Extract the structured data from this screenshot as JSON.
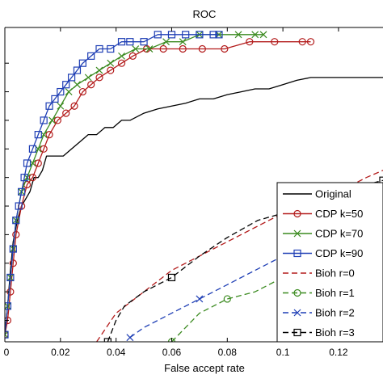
{
  "chart_data": {
    "type": "line",
    "title": "ROC",
    "xlabel": "False accept rate",
    "ylabel": "",
    "xlim": [
      0,
      0.136
    ],
    "ylim": [
      0.785,
      1.005
    ],
    "xticks": [
      0,
      0.02,
      0.04,
      0.06,
      0.08,
      0.1,
      0.12
    ],
    "xtick_labels": [
      "0",
      "0.02",
      "0.04",
      "0.06",
      "0.08",
      "0.1",
      "0.12"
    ],
    "yticks": [
      0.8,
      0.82,
      0.84,
      0.86,
      0.88,
      0.9,
      0.92,
      0.94,
      0.96,
      0.98
    ],
    "grid": false,
    "legend_position": "bottom-right",
    "series": [
      {
        "name": "Original",
        "color": "#000000",
        "dash": "solid",
        "marker": "none",
        "x": [
          0,
          0.001,
          0.002,
          0.003,
          0.0045,
          0.006,
          0.0075,
          0.009,
          0.0105,
          0.012,
          0.0135,
          0.015,
          0.018,
          0.021,
          0.024,
          0.027,
          0.03,
          0.033,
          0.036,
          0.039,
          0.042,
          0.045,
          0.05,
          0.055,
          0.06,
          0.065,
          0.07,
          0.075,
          0.08,
          0.085,
          0.09,
          0.095,
          0.1,
          0.105,
          0.11,
          0.115,
          0.12,
          0.125,
          0.13,
          0.136
        ],
        "y": [
          0.79,
          0.81,
          0.835,
          0.855,
          0.87,
          0.88,
          0.885,
          0.89,
          0.9,
          0.9,
          0.905,
          0.915,
          0.915,
          0.915,
          0.92,
          0.925,
          0.93,
          0.93,
          0.935,
          0.935,
          0.94,
          0.94,
          0.945,
          0.948,
          0.95,
          0.952,
          0.955,
          0.955,
          0.958,
          0.96,
          0.962,
          0.962,
          0.965,
          0.968,
          0.97,
          0.97,
          0.97,
          0.97,
          0.97,
          0.97
        ]
      },
      {
        "name": "CDP k=50",
        "color": "#b31b1b",
        "dash": "solid",
        "marker": "circle",
        "x": [
          0,
          0.001,
          0.002,
          0.003,
          0.004,
          0.006,
          0.008,
          0.01,
          0.012,
          0.014,
          0.016,
          0.019,
          0.022,
          0.025,
          0.028,
          0.031,
          0.034,
          0.038,
          0.042,
          0.046,
          0.051,
          0.057,
          0.064,
          0.071,
          0.079,
          0.088,
          0.097,
          0.107,
          0.11
        ],
        "y": [
          0.79,
          0.8,
          0.82,
          0.84,
          0.86,
          0.88,
          0.895,
          0.9,
          0.91,
          0.92,
          0.93,
          0.94,
          0.945,
          0.95,
          0.96,
          0.965,
          0.97,
          0.975,
          0.98,
          0.985,
          0.99,
          0.99,
          0.99,
          0.99,
          0.99,
          0.995,
          0.995,
          0.995,
          0.995
        ]
      },
      {
        "name": "CDP k=70",
        "color": "#3a8a1f",
        "dash": "solid",
        "marker": "x",
        "x": [
          0,
          0.001,
          0.002,
          0.003,
          0.004,
          0.006,
          0.008,
          0.01,
          0.012,
          0.014,
          0.017,
          0.02,
          0.023,
          0.026,
          0.03,
          0.034,
          0.038,
          0.042,
          0.047,
          0.052,
          0.058,
          0.064,
          0.07,
          0.077,
          0.084,
          0.09,
          0.093
        ],
        "y": [
          0.79,
          0.81,
          0.83,
          0.85,
          0.87,
          0.89,
          0.9,
          0.91,
          0.92,
          0.93,
          0.94,
          0.95,
          0.96,
          0.965,
          0.97,
          0.975,
          0.98,
          0.985,
          0.99,
          0.99,
          0.995,
          0.995,
          1.0,
          1.0,
          1.0,
          1.0,
          1.0
        ]
      },
      {
        "name": "CDP k=90",
        "color": "#1f3fb5",
        "dash": "solid",
        "marker": "square",
        "x": [
          0,
          0.001,
          0.002,
          0.003,
          0.004,
          0.005,
          0.006,
          0.007,
          0.008,
          0.01,
          0.012,
          0.014,
          0.016,
          0.018,
          0.02,
          0.022,
          0.024,
          0.026,
          0.028,
          0.031,
          0.034,
          0.038,
          0.042,
          0.045,
          0.05,
          0.055,
          0.06,
          0.065,
          0.07,
          0.075,
          0.077
        ],
        "y": [
          0.79,
          0.81,
          0.83,
          0.85,
          0.87,
          0.88,
          0.89,
          0.9,
          0.91,
          0.92,
          0.93,
          0.94,
          0.95,
          0.955,
          0.96,
          0.965,
          0.97,
          0.975,
          0.98,
          0.985,
          0.99,
          0.99,
          0.995,
          0.995,
          0.995,
          1.0,
          1.0,
          1.0,
          1.0,
          1.0,
          1.0
        ]
      },
      {
        "name": "Bioh r=0",
        "color": "#b31b1b",
        "dash": "dashed",
        "marker": "none",
        "x": [
          0.033,
          0.04,
          0.05,
          0.06,
          0.07,
          0.08,
          0.09,
          0.1,
          0.11,
          0.12,
          0.13,
          0.136
        ],
        "y": [
          0.785,
          0.805,
          0.82,
          0.835,
          0.845,
          0.855,
          0.865,
          0.875,
          0.88,
          0.89,
          0.9,
          0.905
        ]
      },
      {
        "name": "Bioh r=1",
        "color": "#3a8a1f",
        "dash": "dashed",
        "marker": "circle",
        "x": [
          0.06,
          0.065,
          0.07,
          0.075,
          0.08,
          0.09,
          0.1,
          0.11,
          0.12,
          0.13,
          0.136
        ],
        "y": [
          0.785,
          0.795,
          0.805,
          0.81,
          0.815,
          0.82,
          0.83,
          0.84,
          0.85,
          0.86,
          0.865
        ]
      },
      {
        "name": "Bioh r=2",
        "color": "#1f3fb5",
        "dash": "dashed",
        "marker": "x",
        "x": [
          0.045,
          0.05,
          0.055,
          0.06,
          0.07,
          0.08,
          0.09,
          0.1,
          0.11,
          0.12,
          0.13,
          0.136
        ],
        "y": [
          0.788,
          0.795,
          0.8,
          0.805,
          0.815,
          0.825,
          0.835,
          0.845,
          0.85,
          0.855,
          0.86,
          0.865
        ]
      },
      {
        "name": "Bioh r=3",
        "color": "#000000",
        "dash": "dashed",
        "marker": "square",
        "x": [
          0.037,
          0.04,
          0.043,
          0.05,
          0.06,
          0.07,
          0.08,
          0.091,
          0.1,
          0.11,
          0.12,
          0.13,
          0.136
        ],
        "y": [
          0.785,
          0.8,
          0.81,
          0.82,
          0.83,
          0.845,
          0.858,
          0.87,
          0.875,
          0.88,
          0.888,
          0.895,
          0.898
        ]
      }
    ]
  },
  "colors": {
    "axes": "#000000",
    "background": "#ffffff",
    "legend_border": "#000000"
  }
}
